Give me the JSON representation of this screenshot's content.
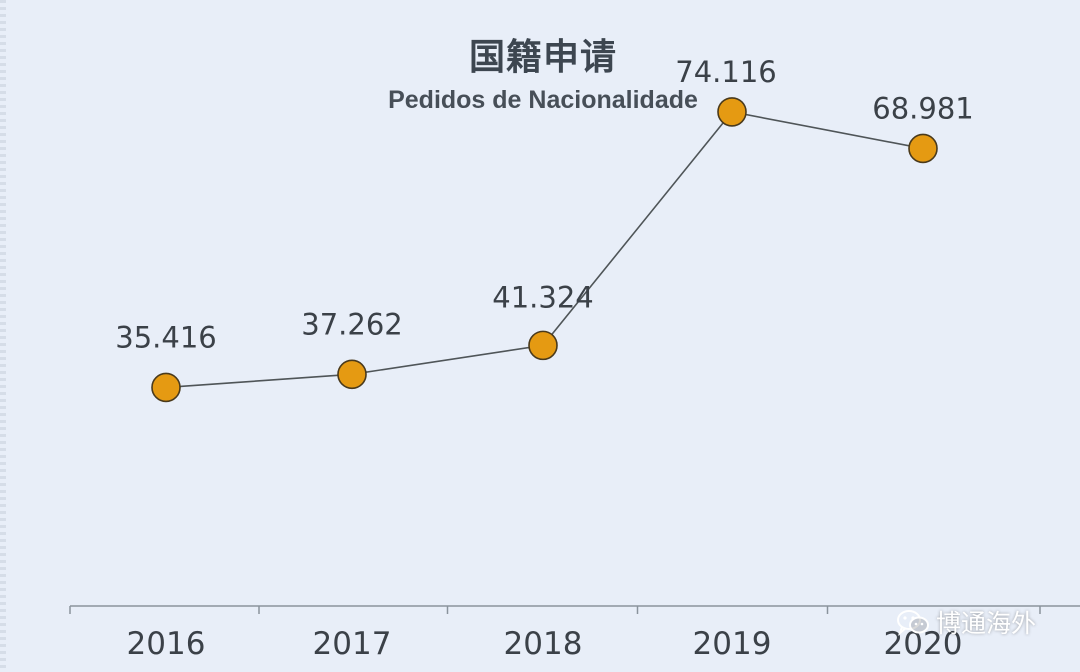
{
  "chart_data": {
    "type": "line",
    "title": "国籍申请",
    "subtitle": "Pedidos de Nacionalidade",
    "categories": [
      "2016",
      "2017",
      "2018",
      "2019",
      "2020"
    ],
    "values": [
      35416,
      37262,
      41324,
      74116,
      68981
    ],
    "data_labels": [
      "35.416",
      "37.262",
      "41.324",
      "74.116",
      "68.981"
    ],
    "ylim": [
      5000,
      80000
    ],
    "grid": false,
    "legend": "none",
    "colors": {
      "marker_fill": "#e59a12",
      "marker_stroke": "#4a3a1c",
      "line": "#4f5558",
      "axis": "#8a939c",
      "text": "#3b4148",
      "background": "#e8eef8"
    }
  },
  "watermark": {
    "text": "博通海外",
    "icon": "wechat-icon"
  }
}
